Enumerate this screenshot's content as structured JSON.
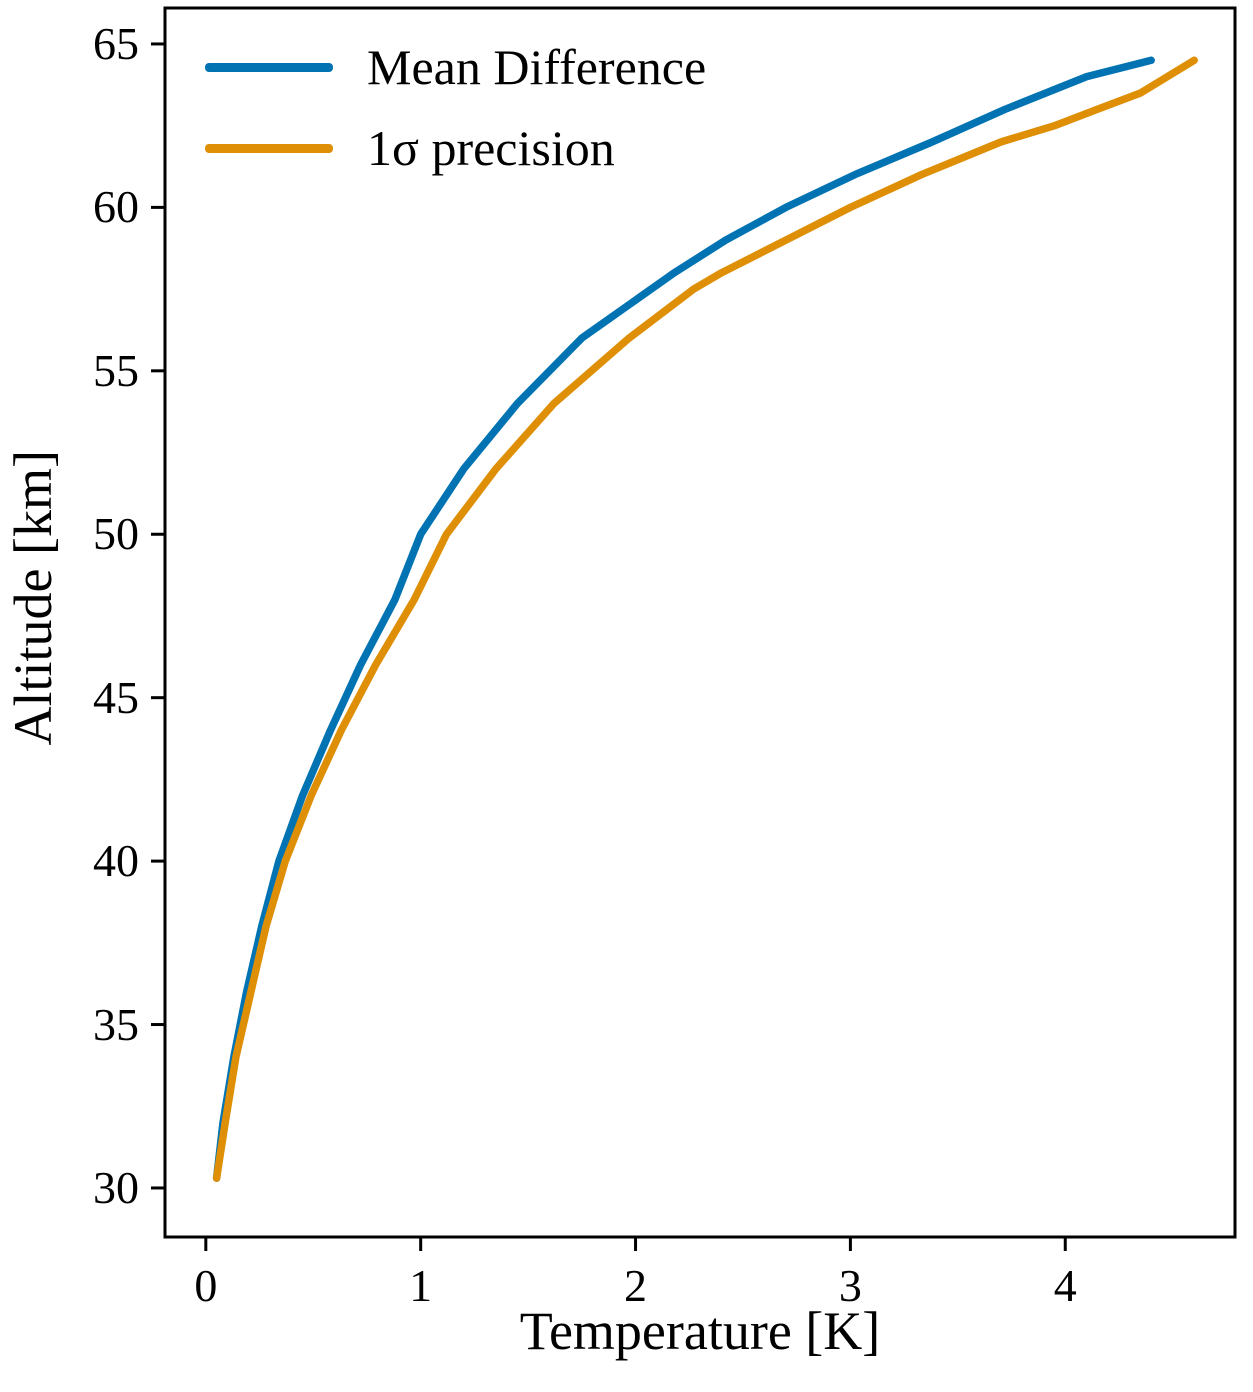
{
  "chart_data": {
    "type": "line",
    "title": "",
    "xlabel": "Temperature [K]",
    "ylabel": "Altitude [km]",
    "xlim": [
      -0.19,
      4.79
    ],
    "ylim": [
      28.5,
      66.1
    ],
    "x_ticks": [
      0,
      1,
      2,
      3,
      4
    ],
    "x_tick_labels": [
      "0",
      "1",
      "2",
      "3",
      "4"
    ],
    "y_ticks": [
      30,
      35,
      40,
      45,
      50,
      55,
      60,
      65
    ],
    "y_tick_labels": [
      "30",
      "35",
      "40",
      "45",
      "50",
      "55",
      "60",
      "65"
    ],
    "grid": false,
    "legend_position": "upper-left",
    "axis_color": "#000000",
    "series": [
      {
        "name": "Mean Difference",
        "color": "#0173B2",
        "points": [
          [
            0.05,
            30.3
          ],
          [
            0.08,
            32.0
          ],
          [
            0.13,
            34.0
          ],
          [
            0.19,
            36.0
          ],
          [
            0.26,
            38.0
          ],
          [
            0.34,
            40.0
          ],
          [
            0.45,
            42.0
          ],
          [
            0.58,
            44.0
          ],
          [
            0.72,
            46.0
          ],
          [
            0.88,
            48.0
          ],
          [
            1.0,
            50.0
          ],
          [
            1.2,
            52.0
          ],
          [
            1.45,
            54.0
          ],
          [
            1.75,
            56.0
          ],
          [
            2.18,
            58.0
          ],
          [
            2.42,
            59.0
          ],
          [
            2.7,
            60.0
          ],
          [
            3.02,
            61.0
          ],
          [
            3.38,
            62.0
          ],
          [
            3.72,
            63.0
          ],
          [
            4.1,
            64.0
          ],
          [
            4.4,
            64.5
          ]
        ]
      },
      {
        "name": "1σ precision",
        "color": "#DE8F05",
        "points": [
          [
            0.05,
            30.3
          ],
          [
            0.09,
            32.0
          ],
          [
            0.14,
            34.0
          ],
          [
            0.21,
            36.0
          ],
          [
            0.28,
            38.0
          ],
          [
            0.37,
            40.0
          ],
          [
            0.49,
            42.0
          ],
          [
            0.63,
            44.0
          ],
          [
            0.79,
            46.0
          ],
          [
            0.97,
            48.0
          ],
          [
            1.12,
            50.0
          ],
          [
            1.35,
            52.0
          ],
          [
            1.62,
            54.0
          ],
          [
            1.97,
            56.0
          ],
          [
            2.27,
            57.5
          ],
          [
            2.4,
            58.0
          ],
          [
            3.0,
            60.0
          ],
          [
            3.33,
            61.0
          ],
          [
            3.7,
            62.0
          ],
          [
            3.95,
            62.5
          ],
          [
            4.15,
            63.0
          ],
          [
            4.35,
            63.5
          ],
          [
            4.6,
            64.5
          ]
        ]
      }
    ]
  }
}
